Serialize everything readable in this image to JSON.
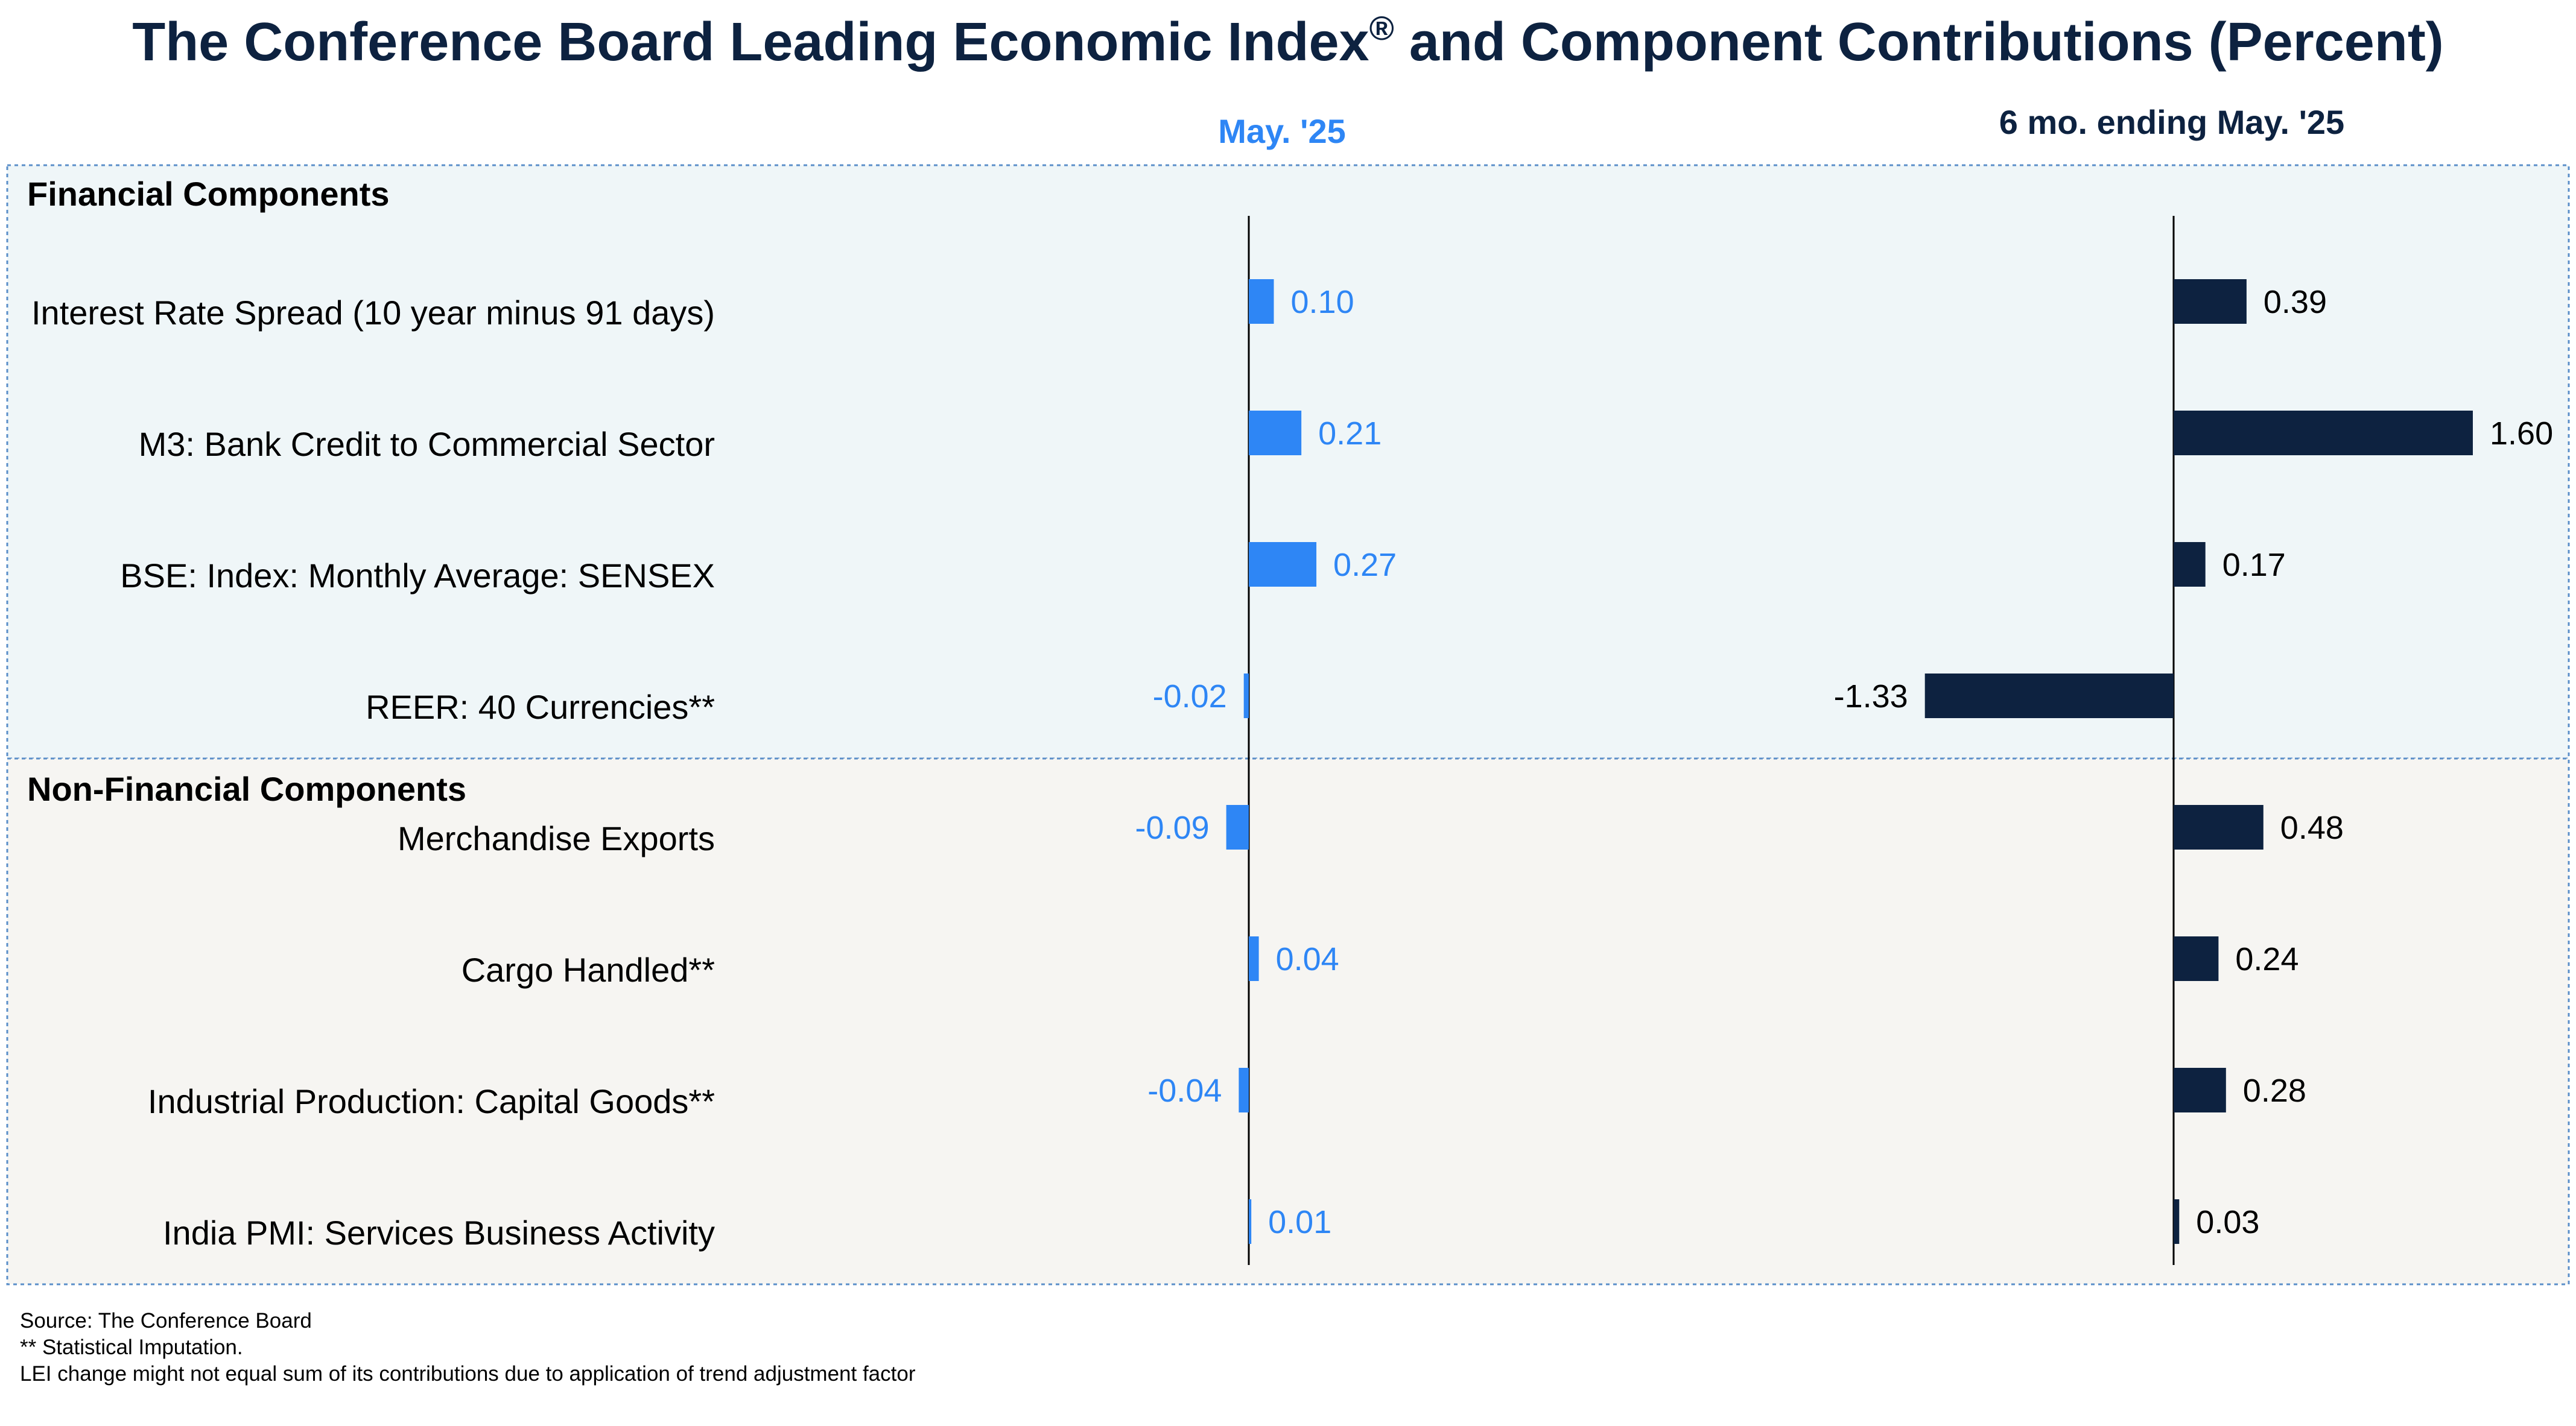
{
  "chart_data": {
    "type": "bar",
    "orientation": "horizontal",
    "title": "The Conference Board Leading Economic Index",
    "title_mark": "®",
    "title_suffix": " and Component Contributions (Percent)",
    "sections": [
      {
        "name": "Financial Components",
        "categories": [
          "Interest Rate Spread (10 year minus 91 days)",
          "M3: Bank Credit to Commercial Sector",
          "BSE: Index: Monthly Average: SENSEX",
          "REER: 40 Currencies**"
        ]
      },
      {
        "name": "Non-Financial Components",
        "categories": [
          "Merchandise Exports",
          "Cargo Handled**",
          "Industrial Production: Capital Goods**",
          "India PMI: Services Business Activity"
        ]
      }
    ],
    "series": [
      {
        "name": "May. '25",
        "color": "#2e86f5",
        "values": [
          0.1,
          0.21,
          0.27,
          -0.02,
          -0.09,
          0.04,
          -0.04,
          0.01
        ],
        "labels": [
          "0.10",
          "0.21",
          "0.27",
          "-0.02",
          "-0.09",
          "0.04",
          "-0.04",
          "0.01"
        ]
      },
      {
        "name": "6 mo. ending May. '25",
        "color": "#0d2240",
        "values": [
          0.39,
          1.6,
          0.17,
          -1.33,
          0.48,
          0.24,
          0.28,
          0.03
        ],
        "labels": [
          "0.39",
          "1.60",
          "0.17",
          "-1.33",
          "0.48",
          "0.24",
          "0.28",
          "0.03"
        ]
      }
    ],
    "grid": false,
    "legend": "none"
  },
  "colors": {
    "title": "#0d2240",
    "financial_bg": "#eff6f8",
    "nonfinancial_bg": "#f6f5f2",
    "section_border": "#5b8fc9"
  },
  "footnotes": [
    "Source: The Conference Board",
    "**  Statistical Imputation.",
    "LEI change might not equal sum of its contributions due to application of trend adjustment factor"
  ]
}
